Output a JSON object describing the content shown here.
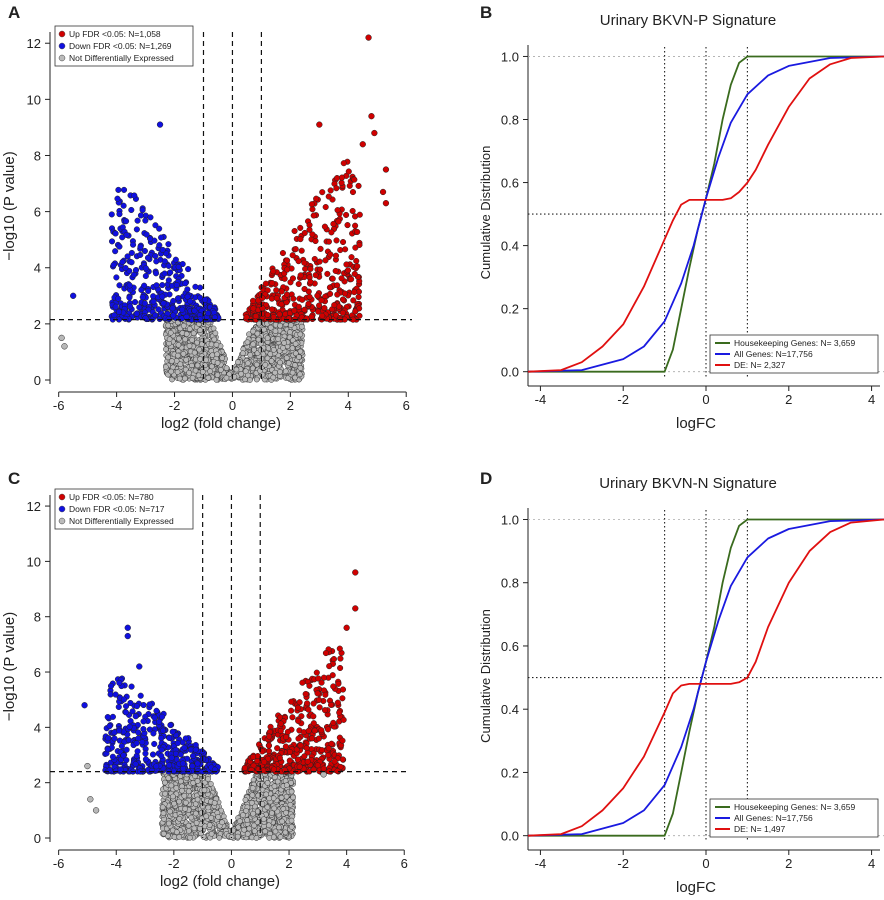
{
  "chart_data": [
    {
      "panel": "A",
      "type": "scatter",
      "title": "",
      "xlabel": "log2 (fold change)",
      "ylabel": "−log10 (P value)",
      "xlim": [
        -6.3,
        6.2
      ],
      "ylim": [
        0,
        12.4
      ],
      "xticks": [
        -6,
        -4,
        -2,
        0,
        2,
        4,
        6
      ],
      "yticks": [
        0,
        2,
        4,
        6,
        8,
        10,
        12
      ],
      "threshold_y": 2.15,
      "fc_lines": [
        -1,
        0,
        1
      ],
      "legend": [
        {
          "label": "Up FDR <0.05: N=1,058",
          "color": "#d00000"
        },
        {
          "label": "Down FDR <0.05: N=1,269",
          "color": "#1010e0"
        },
        {
          "label": "Not Differentially Expressed",
          "color": "#bbbbbb"
        }
      ],
      "highlight_points": [
        {
          "x": 4.7,
          "y": 12.2,
          "group": "up"
        },
        {
          "x": 4.8,
          "y": 9.4,
          "group": "up"
        },
        {
          "x": 4.9,
          "y": 8.8,
          "group": "up"
        },
        {
          "x": 4.5,
          "y": 8.4,
          "group": "up"
        },
        {
          "x": 5.3,
          "y": 7.5,
          "group": "up"
        },
        {
          "x": 5.2,
          "y": 6.7,
          "group": "up"
        },
        {
          "x": 5.3,
          "y": 6.3,
          "group": "up"
        },
        {
          "x": 3.0,
          "y": 9.1,
          "group": "up"
        },
        {
          "x": -2.5,
          "y": 9.1,
          "group": "down"
        },
        {
          "x": -5.5,
          "y": 3.0,
          "group": "down"
        },
        {
          "x": -5.9,
          "y": 1.5,
          "group": "ns"
        },
        {
          "x": -5.8,
          "y": 1.2,
          "group": "ns"
        }
      ],
      "cloud": {
        "up_ymax": 7.8,
        "down_ymax": 6.8,
        "xmax": 4.4,
        "xmin": -4.2
      }
    },
    {
      "panel": "B",
      "type": "line",
      "title": "Urinary BKVN-P Signature",
      "xlabel": "logFC",
      "ylabel": "Cumulative Distribution",
      "xlim": [
        -4.3,
        4.3
      ],
      "ylim": [
        -0.02,
        1.03
      ],
      "xticks": [
        -4,
        -2,
        0,
        2,
        4
      ],
      "yticks": [
        0.0,
        0.2,
        0.4,
        0.6,
        0.8,
        1.0
      ],
      "vlines": [
        -1,
        0,
        1
      ],
      "hline": 0.5,
      "legend": [
        {
          "label": "Housekeeping Genes: N= 3,659",
          "color": "#3a6b1e"
        },
        {
          "label": "All Genes: N=17,756",
          "color": "#1a1ae0"
        },
        {
          "label": "DE: N= 2,327",
          "color": "#e01010"
        }
      ],
      "series": [
        {
          "name": "Housekeeping Genes: N= 3,659",
          "color": "#3a6b1e",
          "x": [
            -4.3,
            -1.0,
            -0.8,
            -0.6,
            -0.4,
            -0.2,
            0.0,
            0.2,
            0.4,
            0.6,
            0.8,
            1.0,
            4.3
          ],
          "y": [
            0.0,
            0.0,
            0.07,
            0.2,
            0.33,
            0.45,
            0.55,
            0.66,
            0.8,
            0.91,
            0.98,
            1.0,
            1.0
          ]
        },
        {
          "name": "All Genes: N=17,756",
          "color": "#1a1ae0",
          "x": [
            -4.3,
            -3.0,
            -2.0,
            -1.5,
            -1.0,
            -0.6,
            -0.3,
            0.0,
            0.3,
            0.6,
            1.0,
            1.5,
            2.0,
            3.0,
            4.3
          ],
          "y": [
            0.0,
            0.005,
            0.04,
            0.08,
            0.16,
            0.28,
            0.4,
            0.55,
            0.68,
            0.79,
            0.88,
            0.94,
            0.97,
            0.995,
            1.0
          ]
        },
        {
          "name": "DE: N= 2,327",
          "color": "#e01010",
          "x": [
            -4.3,
            -3.5,
            -3.0,
            -2.5,
            -2.0,
            -1.5,
            -1.0,
            -0.8,
            -0.6,
            -0.4,
            -0.2,
            0.0,
            0.2,
            0.4,
            0.6,
            0.8,
            1.0,
            1.2,
            1.5,
            2.0,
            2.5,
            3.0,
            3.5,
            4.3
          ],
          "y": [
            0.0,
            0.005,
            0.03,
            0.08,
            0.15,
            0.27,
            0.42,
            0.48,
            0.53,
            0.545,
            0.545,
            0.545,
            0.545,
            0.545,
            0.55,
            0.57,
            0.6,
            0.64,
            0.72,
            0.84,
            0.93,
            0.975,
            0.995,
            1.0
          ]
        }
      ]
    },
    {
      "panel": "C",
      "type": "scatter",
      "title": "",
      "xlabel": "log2 (fold change)",
      "ylabel": "−log10 (P value)",
      "xlim": [
        -6.3,
        6.2
      ],
      "ylim": [
        0,
        12.4
      ],
      "xticks": [
        -6,
        -4,
        -2,
        0,
        2,
        4,
        6
      ],
      "yticks": [
        0,
        2,
        4,
        6,
        8,
        10,
        12
      ],
      "threshold_y": 2.4,
      "fc_lines": [
        -1,
        0,
        1
      ],
      "legend": [
        {
          "label": "Up FDR <0.05: N=780",
          "color": "#d00000"
        },
        {
          "label": "Down FDR <0.05: N=717",
          "color": "#1010e0"
        },
        {
          "label": "Not Differentially Expressed",
          "color": "#bbbbbb"
        }
      ],
      "highlight_points": [
        {
          "x": 4.3,
          "y": 9.6,
          "group": "up"
        },
        {
          "x": 4.3,
          "y": 8.3,
          "group": "up"
        },
        {
          "x": 4.0,
          "y": 7.6,
          "group": "up"
        },
        {
          "x": -3.6,
          "y": 7.6,
          "group": "down"
        },
        {
          "x": -3.6,
          "y": 7.3,
          "group": "down"
        },
        {
          "x": -3.2,
          "y": 6.2,
          "group": "down"
        },
        {
          "x": -5.1,
          "y": 4.8,
          "group": "down"
        },
        {
          "x": -5.0,
          "y": 2.6,
          "group": "ns"
        },
        {
          "x": -4.9,
          "y": 1.4,
          "group": "ns"
        },
        {
          "x": -4.7,
          "y": 1.0,
          "group": "ns"
        },
        {
          "x": 3.2,
          "y": 2.3,
          "group": "ns"
        }
      ],
      "cloud": {
        "up_ymax": 6.9,
        "down_ymax": 5.8,
        "xmax": 3.9,
        "xmin": -4.4
      }
    },
    {
      "panel": "D",
      "type": "line",
      "title": "Urinary BKVN-N Signature",
      "xlabel": "logFC",
      "ylabel": "Cumulative Distribution",
      "xlim": [
        -4.3,
        4.3
      ],
      "ylim": [
        -0.02,
        1.03
      ],
      "xticks": [
        -4,
        -2,
        0,
        2,
        4
      ],
      "yticks": [
        0.0,
        0.2,
        0.4,
        0.6,
        0.8,
        1.0
      ],
      "vlines": [
        -1,
        0,
        1
      ],
      "hline": 0.5,
      "legend": [
        {
          "label": "Housekeeping Genes: N= 3,659",
          "color": "#3a6b1e"
        },
        {
          "label": "All Genes: N=17,756",
          "color": "#1a1ae0"
        },
        {
          "label": "DE: N= 1,497",
          "color": "#e01010"
        }
      ],
      "series": [
        {
          "name": "Housekeeping Genes: N= 3,659",
          "color": "#3a6b1e",
          "x": [
            -4.3,
            -1.0,
            -0.8,
            -0.6,
            -0.4,
            -0.2,
            0.0,
            0.2,
            0.4,
            0.6,
            0.8,
            1.0,
            4.3
          ],
          "y": [
            0.0,
            0.0,
            0.07,
            0.2,
            0.33,
            0.45,
            0.55,
            0.66,
            0.8,
            0.91,
            0.98,
            1.0,
            1.0
          ]
        },
        {
          "name": "All Genes: N=17,756",
          "color": "#1a1ae0",
          "x": [
            -4.3,
            -3.0,
            -2.0,
            -1.5,
            -1.0,
            -0.6,
            -0.3,
            0.0,
            0.3,
            0.6,
            1.0,
            1.5,
            2.0,
            3.0,
            4.3
          ],
          "y": [
            0.0,
            0.005,
            0.04,
            0.08,
            0.16,
            0.28,
            0.4,
            0.55,
            0.68,
            0.79,
            0.88,
            0.94,
            0.97,
            0.995,
            1.0
          ]
        },
        {
          "name": "DE: N= 1,497",
          "color": "#e01010",
          "x": [
            -4.3,
            -3.5,
            -3.0,
            -2.5,
            -2.0,
            -1.5,
            -1.0,
            -0.8,
            -0.6,
            -0.4,
            -0.2,
            0.0,
            0.2,
            0.4,
            0.6,
            0.8,
            1.0,
            1.2,
            1.5,
            2.0,
            2.5,
            3.0,
            3.5,
            4.3
          ],
          "y": [
            0.0,
            0.005,
            0.03,
            0.08,
            0.15,
            0.25,
            0.39,
            0.45,
            0.475,
            0.48,
            0.48,
            0.48,
            0.48,
            0.48,
            0.48,
            0.485,
            0.5,
            0.55,
            0.66,
            0.8,
            0.9,
            0.96,
            0.99,
            1.0
          ]
        }
      ]
    }
  ]
}
